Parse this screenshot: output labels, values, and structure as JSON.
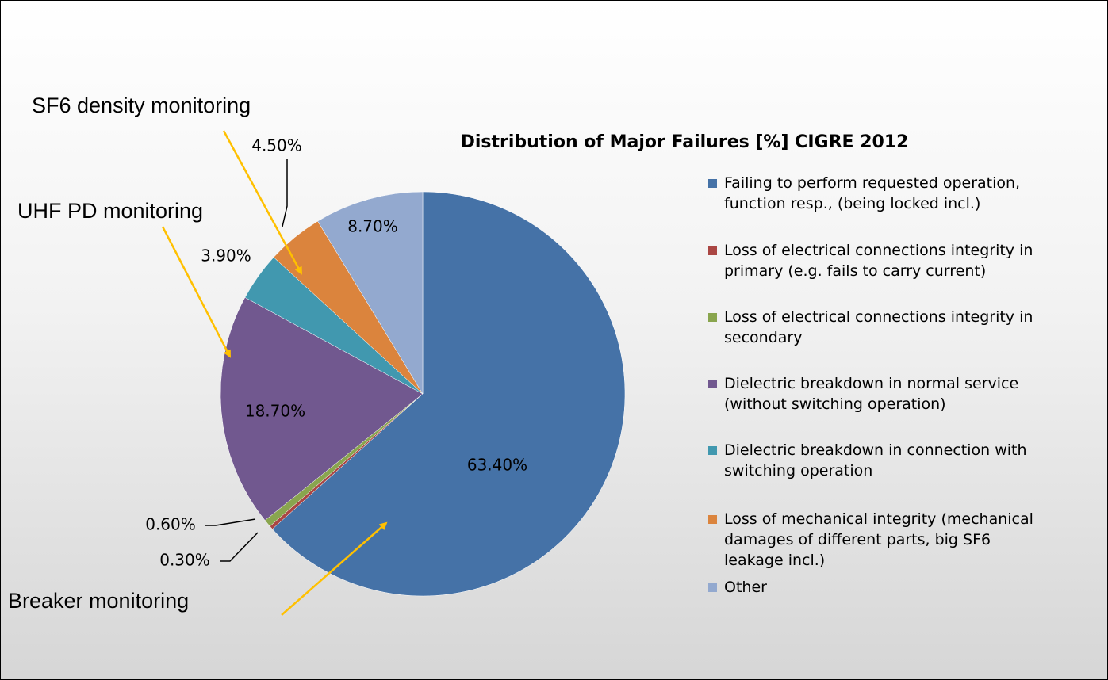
{
  "chart_data": {
    "type": "pie",
    "title": "Distribution of Major Failures [%] CIGRE 2012",
    "categories": [
      "Failing to perform requested operation, function resp., (being locked incl.)",
      "Loss of electrical connections integrity in primary (e.g. fails to carry current)",
      "Loss of electrical connections integrity in secondary",
      "Dielectric breakdown in normal service (without switching operation)",
      "Dielectric breakdown in connection with switching operation",
      "Loss of mechanical integrity (mechanical damages of different parts, big SF6 leakage incl.)",
      "Other"
    ],
    "values": [
      63.4,
      0.3,
      0.6,
      18.7,
      3.9,
      4.5,
      8.7
    ],
    "value_labels": [
      "63.40%",
      "0.30%",
      "0.60%",
      "18.70%",
      "3.90%",
      "4.50%",
      "8.70%"
    ],
    "colors": [
      "#4572a7",
      "#aa4643",
      "#89a54e",
      "#71588f",
      "#4198af",
      "#db843d",
      "#93a9cf"
    ],
    "legend": "right",
    "annotations": [
      "SF6 density monitoring",
      "UHF PD monitoring",
      "Breaker monitoring"
    ]
  }
}
